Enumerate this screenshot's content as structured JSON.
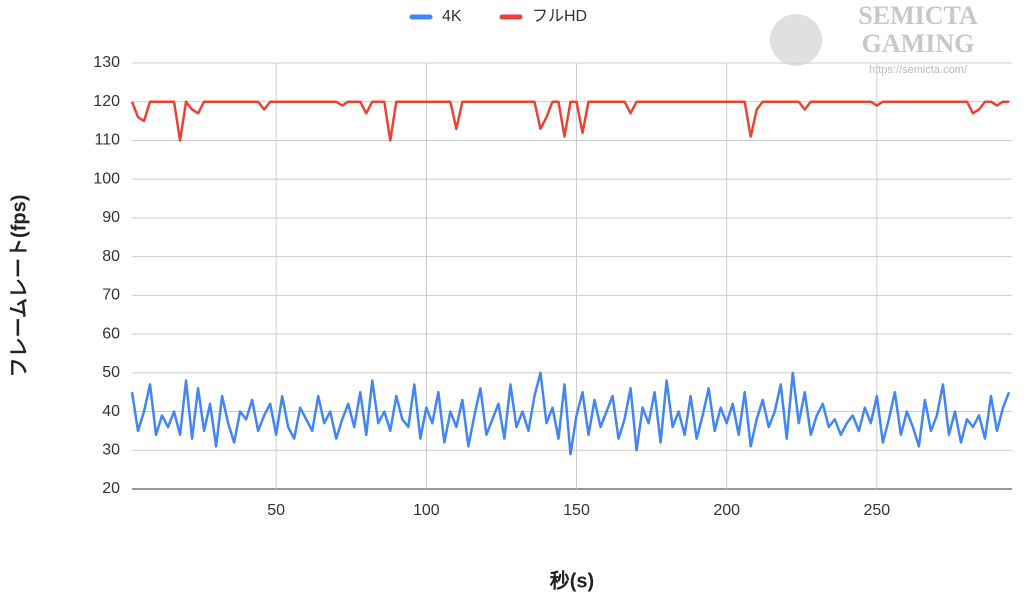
{
  "chart_data": {
    "type": "line",
    "x_label": "秒(s)",
    "y_label": "フレームレート(fps)",
    "watermark": [
      "SEMICTA",
      "GAMING",
      "https://semicta.com/"
    ],
    "legend": "top",
    "grid": true,
    "xlim": [
      2,
      295
    ],
    "xticks": [
      50,
      100,
      150,
      200,
      250
    ],
    "ylim": [
      20,
      130
    ],
    "yticks": [
      20,
      30,
      40,
      50,
      60,
      70,
      80,
      90,
      100,
      110,
      120,
      130
    ],
    "x": [
      2,
      4,
      6,
      8,
      10,
      12,
      14,
      16,
      18,
      20,
      22,
      24,
      26,
      28,
      30,
      32,
      34,
      36,
      38,
      40,
      42,
      44,
      46,
      48,
      50,
      52,
      54,
      56,
      58,
      60,
      62,
      64,
      66,
      68,
      70,
      72,
      74,
      76,
      78,
      80,
      82,
      84,
      86,
      88,
      90,
      92,
      94,
      96,
      98,
      100,
      102,
      104,
      106,
      108,
      110,
      112,
      114,
      116,
      118,
      120,
      122,
      124,
      126,
      128,
      130,
      132,
      134,
      136,
      138,
      140,
      142,
      144,
      146,
      148,
      150,
      152,
      154,
      156,
      158,
      160,
      162,
      164,
      166,
      168,
      170,
      172,
      174,
      176,
      178,
      180,
      182,
      184,
      186,
      188,
      190,
      192,
      194,
      196,
      198,
      200,
      202,
      204,
      206,
      208,
      210,
      212,
      214,
      216,
      218,
      220,
      222,
      224,
      226,
      228,
      230,
      232,
      234,
      236,
      238,
      240,
      242,
      244,
      246,
      248,
      250,
      252,
      254,
      256,
      258,
      260,
      262,
      264,
      266,
      268,
      270,
      272,
      274,
      276,
      278,
      280,
      282,
      284,
      286,
      288,
      290,
      292,
      294
    ],
    "series": [
      {
        "name": "4K",
        "color": "#4285f4",
        "values": [
          45,
          35,
          40,
          47,
          34,
          39,
          36,
          40,
          34,
          48,
          33,
          46,
          35,
          42,
          31,
          44,
          37,
          32,
          40,
          38,
          43,
          35,
          39,
          42,
          34,
          44,
          36,
          33,
          41,
          38,
          35,
          44,
          37,
          40,
          33,
          38,
          42,
          36,
          45,
          34,
          48,
          37,
          40,
          35,
          44,
          38,
          36,
          47,
          33,
          41,
          37,
          45,
          32,
          40,
          36,
          43,
          31,
          39,
          46,
          34,
          38,
          42,
          33,
          47,
          36,
          40,
          35,
          44,
          50,
          37,
          41,
          33,
          47,
          29,
          39,
          45,
          34,
          43,
          36,
          40,
          44,
          33,
          38,
          46,
          30,
          41,
          37,
          45,
          32,
          48,
          36,
          40,
          34,
          44,
          33,
          39,
          46,
          35,
          41,
          37,
          42,
          34,
          45,
          31,
          38,
          43,
          36,
          40,
          47,
          33,
          50,
          37,
          45,
          34,
          39,
          42,
          36,
          38,
          34,
          37,
          39,
          35,
          41,
          37,
          44,
          32,
          38,
          45,
          34,
          40,
          36,
          31,
          43,
          35,
          39,
          47,
          34,
          40,
          32,
          38,
          36,
          39,
          33,
          44,
          35,
          41,
          45
        ]
      },
      {
        "name": "フルHD",
        "color": "#ea4335",
        "values": [
          120,
          116,
          115,
          120,
          120,
          120,
          120,
          120,
          110,
          120,
          118,
          117,
          120,
          120,
          120,
          120,
          120,
          120,
          120,
          120,
          120,
          120,
          118,
          120,
          120,
          120,
          120,
          120,
          120,
          120,
          120,
          120,
          120,
          120,
          120,
          119,
          120,
          120,
          120,
          117,
          120,
          120,
          120,
          110,
          120,
          120,
          120,
          120,
          120,
          120,
          120,
          120,
          120,
          120,
          113,
          120,
          120,
          120,
          120,
          120,
          120,
          120,
          120,
          120,
          120,
          120,
          120,
          120,
          113,
          116,
          120,
          120,
          111,
          120,
          120,
          112,
          120,
          120,
          120,
          120,
          120,
          120,
          120,
          117,
          120,
          120,
          120,
          120,
          120,
          120,
          120,
          120,
          120,
          120,
          120,
          120,
          120,
          120,
          120,
          120,
          120,
          120,
          120,
          111,
          118,
          120,
          120,
          120,
          120,
          120,
          120,
          120,
          118,
          120,
          120,
          120,
          120,
          120,
          120,
          120,
          120,
          120,
          120,
          120,
          119,
          120,
          120,
          120,
          120,
          120,
          120,
          120,
          120,
          120,
          120,
          120,
          120,
          120,
          120,
          120,
          117,
          118,
          120,
          120,
          119,
          120,
          120
        ]
      }
    ]
  }
}
